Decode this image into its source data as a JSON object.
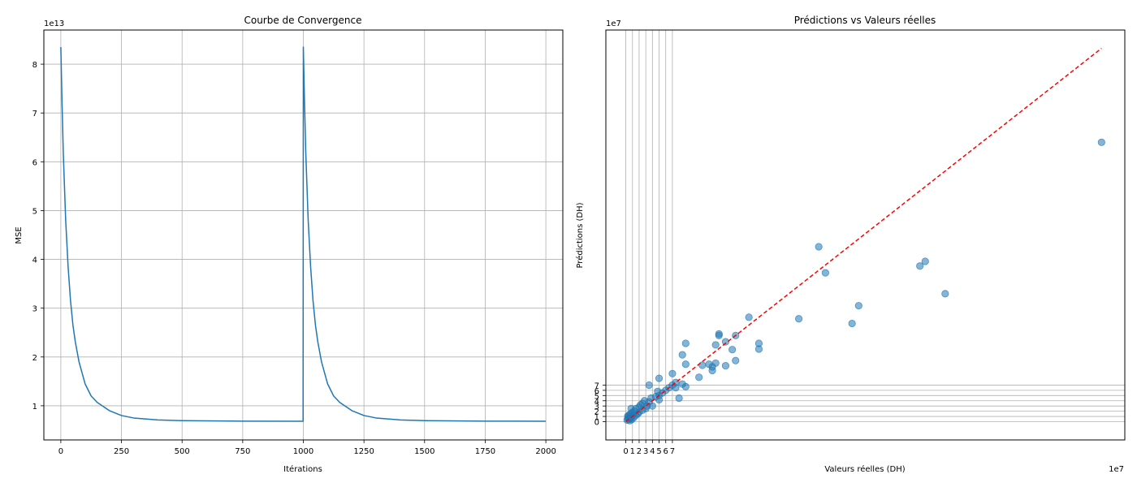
{
  "chart_data": [
    {
      "type": "line",
      "title": "Courbe de Convergence",
      "xlabel": "Itérations",
      "ylabel": "MSE",
      "y_offset_label": "1e13",
      "xlim": [
        -70,
        2070
      ],
      "ylim": [
        0.3,
        8.7
      ],
      "y_scale_factor": 10000000000000.0,
      "grid": true,
      "xticks": [
        0,
        250,
        500,
        750,
        1000,
        1250,
        1500,
        1750,
        2000
      ],
      "yticks": [
        1,
        2,
        3,
        4,
        5,
        6,
        7,
        8
      ],
      "series": [
        {
          "color": "#1f77b4",
          "x": [
            0,
            5,
            10,
            20,
            30,
            40,
            50,
            60,
            75,
            100,
            125,
            150,
            200,
            250,
            300,
            400,
            500,
            600,
            750,
            999,
            1000,
            1005,
            1010,
            1020,
            1030,
            1040,
            1050,
            1060,
            1075,
            1100,
            1125,
            1150,
            1200,
            1250,
            1300,
            1400,
            1500,
            1600,
            1750,
            2000
          ],
          "y": [
            8.35,
            7.2,
            6.2,
            4.8,
            3.85,
            3.15,
            2.65,
            2.3,
            1.9,
            1.45,
            1.2,
            1.07,
            0.9,
            0.8,
            0.75,
            0.71,
            0.695,
            0.69,
            0.685,
            0.683,
            8.35,
            7.2,
            6.2,
            4.8,
            3.85,
            3.15,
            2.65,
            2.3,
            1.9,
            1.45,
            1.2,
            1.07,
            0.9,
            0.8,
            0.75,
            0.71,
            0.695,
            0.69,
            0.685,
            0.683
          ]
        }
      ]
    },
    {
      "type": "scatter",
      "title": "Prédictions vs Valeurs réelles",
      "xlabel": "Valeurs réelles (DH)",
      "ylabel": "Prédictions (DH)",
      "x_offset_label": "1e7",
      "y_offset_label": "1e7",
      "xlim": [
        -3,
        75
      ],
      "ylim": [
        -3.5,
        75
      ],
      "scale_factor": 10000000.0,
      "grid": true,
      "xticks": [
        0,
        1,
        2,
        3,
        4,
        5,
        6,
        7
      ],
      "yticks": [
        0,
        1,
        2,
        3,
        4,
        5,
        6,
        7
      ],
      "point_color": "#1f77b4",
      "line_color": "#ff0000",
      "reference_line": [
        [
          0,
          0
        ],
        [
          71.5,
          71.5
        ]
      ],
      "points": [
        [
          71.5,
          53.5
        ],
        [
          48,
          24.5
        ],
        [
          45,
          30.7
        ],
        [
          44.2,
          29.8
        ],
        [
          35,
          22.2
        ],
        [
          34,
          18.8
        ],
        [
          30,
          28.5
        ],
        [
          29,
          33.5
        ],
        [
          26,
          19.7
        ],
        [
          20,
          15
        ],
        [
          20,
          13.9
        ],
        [
          18.5,
          20
        ],
        [
          16.5,
          16.5
        ],
        [
          16.5,
          11.7
        ],
        [
          16,
          13.8
        ],
        [
          15,
          15.3
        ],
        [
          15,
          10.7
        ],
        [
          14,
          16.8
        ],
        [
          14,
          16.5
        ],
        [
          13.5,
          14.7
        ],
        [
          13.5,
          11.2
        ],
        [
          13,
          10.5
        ],
        [
          13,
          9.8
        ],
        [
          12.5,
          11
        ],
        [
          11.5,
          10.8
        ],
        [
          11,
          8.5
        ],
        [
          9,
          15
        ],
        [
          9,
          11
        ],
        [
          9,
          6.7
        ],
        [
          8.5,
          12.8
        ],
        [
          8.5,
          7.2
        ],
        [
          8,
          4.5
        ],
        [
          7.5,
          7.5
        ],
        [
          7.5,
          6.5
        ],
        [
          7,
          9.2
        ],
        [
          7,
          7
        ],
        [
          6.5,
          6.5
        ],
        [
          6,
          6
        ],
        [
          5.5,
          5.5
        ],
        [
          5,
          8.3
        ],
        [
          5,
          5
        ],
        [
          5,
          4.2
        ],
        [
          4.8,
          5.8
        ],
        [
          4.5,
          4.8
        ],
        [
          4,
          3
        ],
        [
          3.8,
          4.5
        ],
        [
          3.5,
          7
        ],
        [
          3.5,
          3.8
        ],
        [
          3.2,
          3
        ],
        [
          3,
          2.5
        ],
        [
          2.8,
          4
        ],
        [
          2.5,
          3.5
        ],
        [
          2.5,
          2.2
        ],
        [
          2.2,
          3.2
        ],
        [
          2,
          2.8
        ],
        [
          2,
          1.8
        ],
        [
          1.8,
          1.5
        ],
        [
          1.5,
          2.5
        ],
        [
          1.5,
          1.2
        ],
        [
          1.3,
          2
        ],
        [
          1.2,
          0.8
        ],
        [
          1,
          1.8
        ],
        [
          1,
          1.2
        ],
        [
          0.9,
          0.4
        ],
        [
          0.8,
          2.5
        ],
        [
          0.8,
          0.8
        ],
        [
          0.7,
          1.5
        ],
        [
          0.6,
          0.2
        ],
        [
          0.5,
          1.2
        ],
        [
          0.5,
          0.5
        ],
        [
          0.4,
          0.9
        ],
        [
          0.3,
          0.6
        ],
        [
          0.3,
          1.1
        ],
        [
          0.2,
          0.3
        ]
      ]
    }
  ]
}
